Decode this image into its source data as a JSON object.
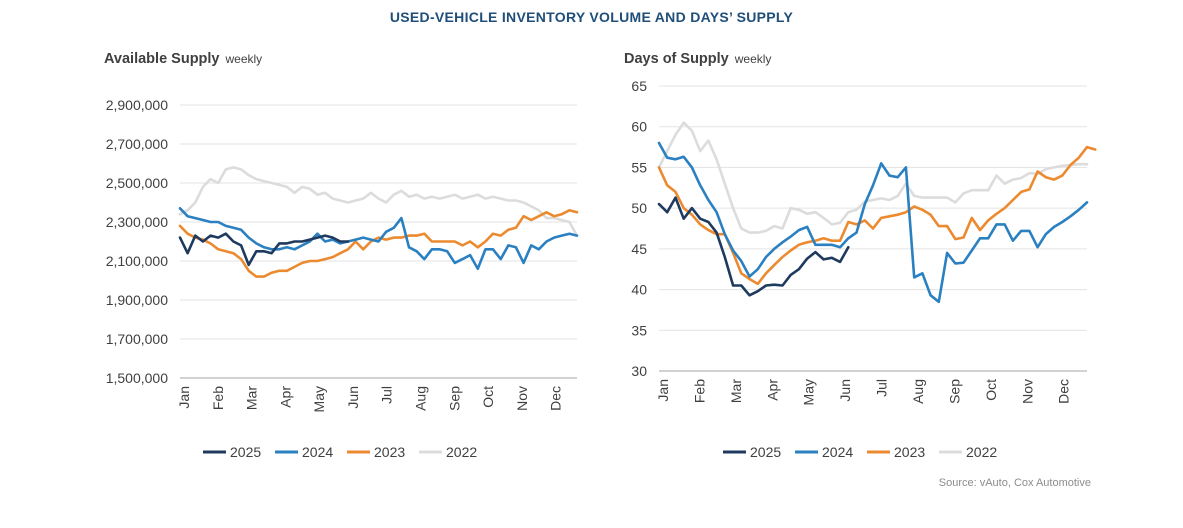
{
  "title": "USED-VEHICLE INVENTORY VOLUME AND DAYS’ SUPPLY",
  "source": "Source: vAuto, Cox Automotive",
  "colors": {
    "2025": "#1f3a5f",
    "2024": "#2a80c0",
    "2023": "#ec8a30",
    "2022": "#dcdcdc"
  },
  "chart_data": [
    {
      "type": "line",
      "title": "Available Supply",
      "subtitle": "weekly",
      "xlabel": "",
      "ylabel": "",
      "x_tick_labels": [
        "Jan",
        "Feb",
        "Mar",
        "Apr",
        "May",
        "Jun",
        "Jul",
        "Aug",
        "Sep",
        "Oct",
        "Nov",
        "Dec"
      ],
      "y_tick_labels": [
        "2,900,000",
        "2,700,000",
        "2,500,000",
        "2,300,000",
        "2,100,000",
        "1,900,000",
        "1,700,000",
        "1,500,000"
      ],
      "ylim": [
        1500000,
        2900000
      ],
      "xlim": [
        1,
        53
      ],
      "legend": [
        "2025",
        "2024",
        "2023",
        "2022"
      ],
      "legend_position": "bottom",
      "series": [
        {
          "name": "2022",
          "values": [
            2340000,
            2360000,
            2400000,
            2480000,
            2520000,
            2500000,
            2570000,
            2580000,
            2570000,
            2540000,
            2520000,
            2510000,
            2500000,
            2490000,
            2480000,
            2450000,
            2480000,
            2470000,
            2440000,
            2450000,
            2420000,
            2410000,
            2400000,
            2410000,
            2420000,
            2450000,
            2420000,
            2400000,
            2440000,
            2460000,
            2430000,
            2440000,
            2420000,
            2430000,
            2420000,
            2430000,
            2440000,
            2420000,
            2430000,
            2440000,
            2420000,
            2430000,
            2420000,
            2410000,
            2410000,
            2400000,
            2380000,
            2360000,
            2320000,
            2320000,
            2310000,
            2300000,
            2230000
          ]
        },
        {
          "name": "2023",
          "values": [
            2280000,
            2240000,
            2220000,
            2210000,
            2190000,
            2160000,
            2150000,
            2140000,
            2110000,
            2050000,
            2020000,
            2020000,
            2040000,
            2050000,
            2050000,
            2070000,
            2090000,
            2100000,
            2100000,
            2110000,
            2120000,
            2140000,
            2160000,
            2200000,
            2160000,
            2200000,
            2220000,
            2210000,
            2220000,
            2220000,
            2230000,
            2230000,
            2240000,
            2200000,
            2200000,
            2200000,
            2200000,
            2180000,
            2200000,
            2170000,
            2200000,
            2240000,
            2230000,
            2260000,
            2270000,
            2330000,
            2310000,
            2330000,
            2350000,
            2330000,
            2340000,
            2360000,
            2350000
          ]
        },
        {
          "name": "2024",
          "values": [
            2370000,
            2330000,
            2320000,
            2310000,
            2300000,
            2300000,
            2280000,
            2270000,
            2260000,
            2220000,
            2190000,
            2170000,
            2160000,
            2160000,
            2170000,
            2160000,
            2180000,
            2200000,
            2240000,
            2200000,
            2210000,
            2190000,
            2200000,
            2210000,
            2220000,
            2210000,
            2200000,
            2250000,
            2270000,
            2320000,
            2170000,
            2150000,
            2110000,
            2160000,
            2160000,
            2150000,
            2090000,
            2110000,
            2130000,
            2060000,
            2160000,
            2160000,
            2110000,
            2180000,
            2170000,
            2090000,
            2180000,
            2160000,
            2200000,
            2220000,
            2230000,
            2240000,
            2230000
          ]
        },
        {
          "name": "2025",
          "values": [
            2220000,
            2140000,
            2230000,
            2200000,
            2230000,
            2220000,
            2240000,
            2200000,
            2180000,
            2080000,
            2150000,
            2150000,
            2140000,
            2190000,
            2190000,
            2200000,
            2200000,
            2210000,
            2220000,
            2230000,
            2220000,
            2200000,
            2200000
          ]
        }
      ]
    },
    {
      "type": "line",
      "title": "Days of Supply",
      "subtitle": "weekly",
      "xlabel": "",
      "ylabel": "",
      "x_tick_labels": [
        "Jan",
        "Feb",
        "Mar",
        "Apr",
        "May",
        "Jun",
        "Jul",
        "Aug",
        "Sep",
        "Oct",
        "Nov",
        "Dec"
      ],
      "y_tick_labels": [
        "65",
        "60",
        "55",
        "50",
        "45",
        "40",
        "35",
        "30"
      ],
      "ylim": [
        30,
        65
      ],
      "xlim": [
        1,
        53
      ],
      "legend": [
        "2025",
        "2024",
        "2023",
        "2022"
      ],
      "legend_position": "bottom",
      "series": [
        {
          "name": "2022",
          "values": [
            55,
            57,
            59,
            60.5,
            59.5,
            57,
            58.3,
            56,
            53,
            50,
            47.5,
            47,
            47,
            47.2,
            47.8,
            47.5,
            50,
            49.8,
            49.3,
            49.5,
            48.8,
            48,
            48.2,
            49.5,
            49.8,
            50.8,
            51,
            51.2,
            51,
            51.5,
            53,
            51.5,
            51.3,
            51.3,
            51.3,
            51.3,
            50.7,
            51.8,
            52.2,
            52.2,
            52.2,
            54,
            53,
            53.5,
            53.7,
            54.3,
            54.2,
            54.8,
            55,
            55.2,
            55.3,
            55.4,
            55.4
          ]
        },
        {
          "name": "2023",
          "values": [
            55,
            52.8,
            52,
            50,
            49.2,
            48,
            47.3,
            46.8,
            46.8,
            44.5,
            42,
            41.3,
            40.7,
            42,
            43,
            44,
            44.8,
            45.5,
            45.8,
            46,
            46.3,
            46,
            46,
            48.3,
            48,
            48.5,
            47.5,
            48.8,
            49,
            49.2,
            49.5,
            50.2,
            49.8,
            49.2,
            47.8,
            47.8,
            46.2,
            46.4,
            48.8,
            47.3,
            48.5,
            49.3,
            50,
            51,
            52,
            52.3,
            54.5,
            53.8,
            53.5,
            54,
            55.3,
            56.2,
            57.5,
            57.2
          ]
        },
        {
          "name": "2024",
          "values": [
            58,
            56.2,
            56,
            56.3,
            55,
            52.8,
            51,
            49.5,
            46.8,
            44.8,
            43.5,
            41.6,
            42.5,
            44,
            45,
            45.8,
            46.5,
            47.3,
            47.7,
            45.5,
            45.5,
            45.5,
            45.2,
            46.3,
            47,
            50.5,
            52.8,
            55.5,
            54,
            53.8,
            55,
            41.5,
            42,
            39.3,
            38.5,
            44.5,
            43.2,
            43.3,
            44.8,
            46.3,
            46.3,
            48,
            48,
            46,
            47.2,
            47.2,
            45.2,
            46.8,
            47.7,
            48.3,
            49,
            49.8,
            50.7
          ]
        },
        {
          "name": "2025",
          "values": [
            50.5,
            49.5,
            51.3,
            48.7,
            50,
            48.7,
            48.3,
            47,
            44,
            40.5,
            40.5,
            39.3,
            39.8,
            40.5,
            40.6,
            40.5,
            41.8,
            42.5,
            43.8,
            44.6,
            43.7,
            43.9,
            43.4,
            45.2
          ]
        }
      ]
    }
  ]
}
